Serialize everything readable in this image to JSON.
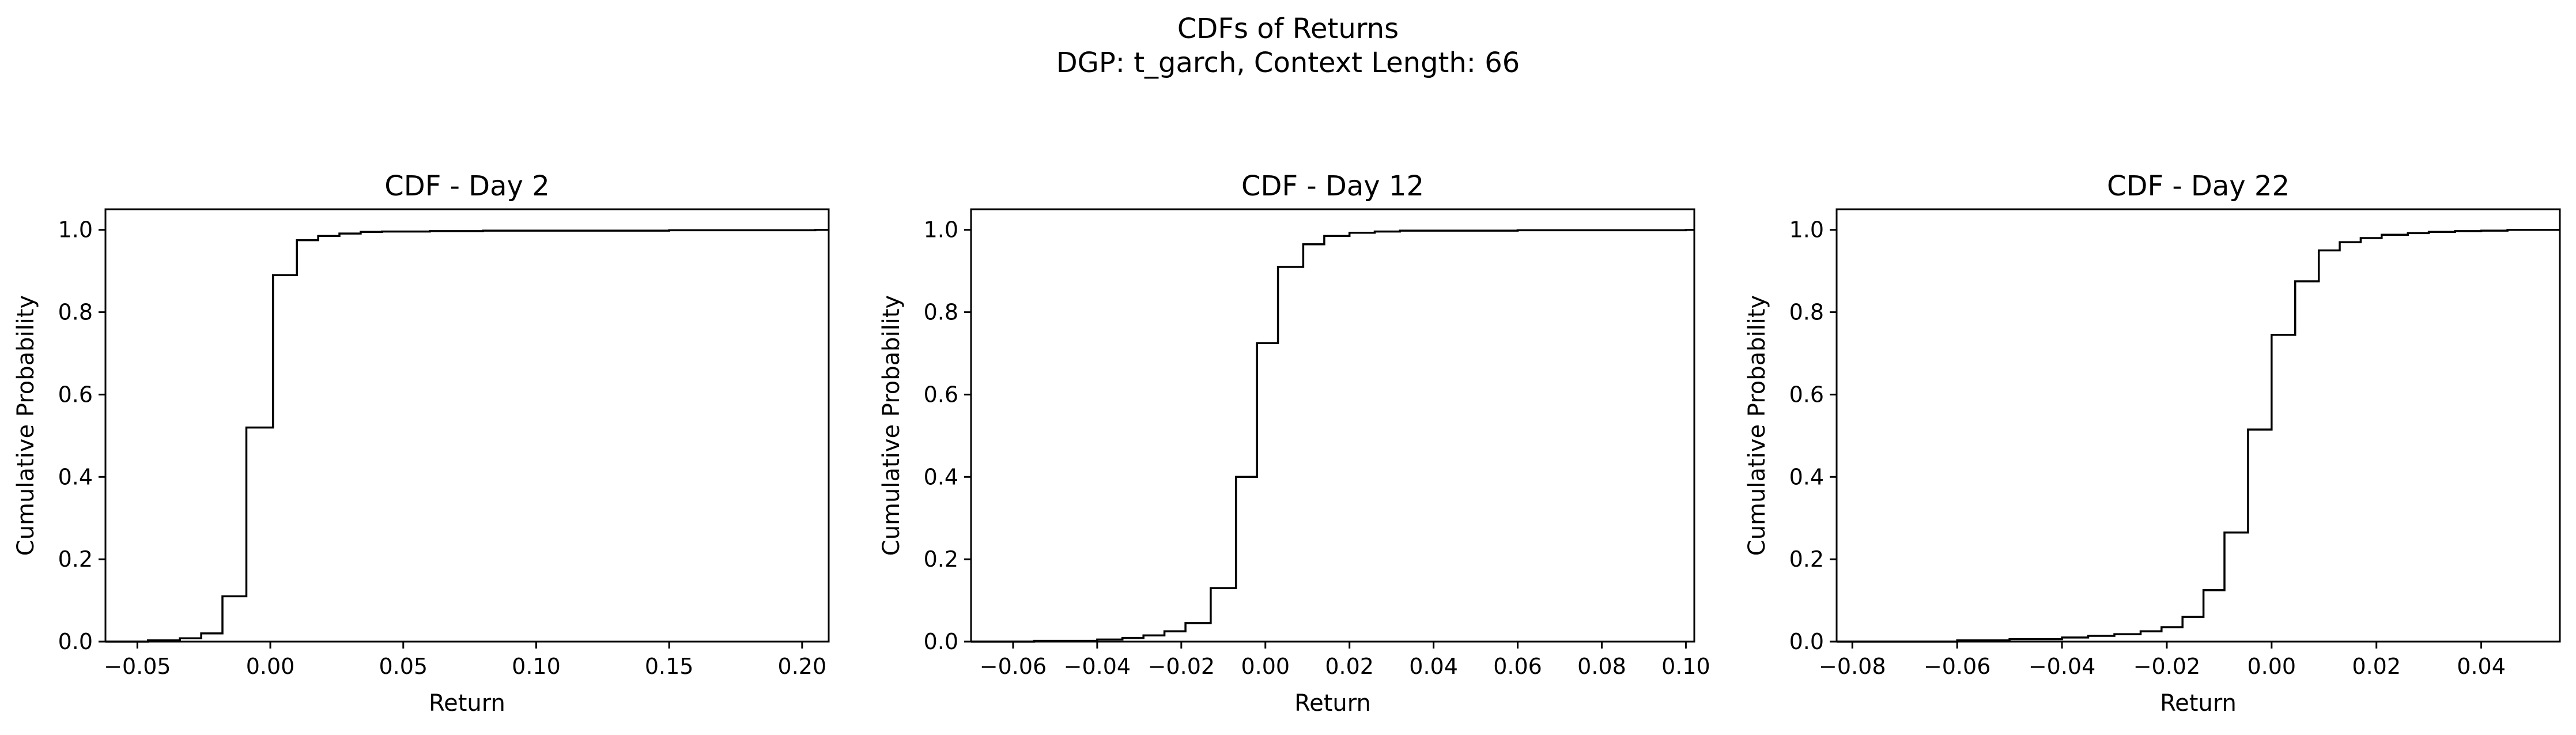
{
  "figure": {
    "suptitle_line1": "CDFs of Returns",
    "suptitle_line2": "DGP: t_garch, Context Length: 66"
  },
  "chart_data": [
    {
      "type": "line",
      "drawstyle": "steps-post",
      "title": "CDF - Day 2",
      "xlabel": "Return",
      "ylabel": "Cumulative Probability",
      "xlim": [
        -0.062,
        0.21
      ],
      "ylim": [
        0,
        1.05
      ],
      "xticks": [
        -0.05,
        0.0,
        0.05,
        0.1,
        0.15,
        0.2
      ],
      "xtick_labels": [
        "−0.05",
        "0.00",
        "0.05",
        "0.10",
        "0.15",
        "0.20"
      ],
      "yticks": [
        0.0,
        0.2,
        0.4,
        0.6,
        0.8,
        1.0
      ],
      "ytick_labels": [
        "0.0",
        "0.2",
        "0.4",
        "0.6",
        "0.8",
        "1.0"
      ],
      "line_color": "#000000",
      "x": [
        -0.062,
        -0.046,
        -0.034,
        -0.026,
        -0.018,
        -0.009,
        0.001,
        0.01,
        0.018,
        0.026,
        0.034,
        0.042,
        0.06,
        0.08,
        0.11,
        0.15,
        0.205,
        0.21
      ],
      "y": [
        0.0,
        0.003,
        0.008,
        0.02,
        0.11,
        0.52,
        0.89,
        0.975,
        0.985,
        0.991,
        0.995,
        0.996,
        0.997,
        0.998,
        0.998,
        0.999,
        1.0,
        1.0
      ]
    },
    {
      "type": "line",
      "drawstyle": "steps-post",
      "title": "CDF - Day 12",
      "xlabel": "Return",
      "ylabel": "Cumulative Probability",
      "xlim": [
        -0.07,
        0.102
      ],
      "ylim": [
        0,
        1.05
      ],
      "xticks": [
        -0.06,
        -0.04,
        -0.02,
        0.0,
        0.02,
        0.04,
        0.06,
        0.08,
        0.1
      ],
      "xtick_labels": [
        "−0.06",
        "−0.04",
        "−0.02",
        "0.00",
        "0.02",
        "0.04",
        "0.06",
        "0.08",
        "0.10"
      ],
      "yticks": [
        0.0,
        0.2,
        0.4,
        0.6,
        0.8,
        1.0
      ],
      "ytick_labels": [
        "0.0",
        "0.2",
        "0.4",
        "0.6",
        "0.8",
        "1.0"
      ],
      "line_color": "#000000",
      "x": [
        -0.07,
        -0.055,
        -0.04,
        -0.034,
        -0.029,
        -0.024,
        -0.019,
        -0.013,
        -0.007,
        -0.002,
        0.003,
        0.009,
        0.014,
        0.02,
        0.026,
        0.032,
        0.06,
        0.1,
        0.102
      ],
      "y": [
        0.0,
        0.002,
        0.005,
        0.009,
        0.015,
        0.025,
        0.045,
        0.13,
        0.4,
        0.725,
        0.91,
        0.965,
        0.985,
        0.993,
        0.996,
        0.998,
        0.999,
        1.0,
        1.0
      ]
    },
    {
      "type": "line",
      "drawstyle": "steps-post",
      "title": "CDF - Day 22",
      "xlabel": "Return",
      "ylabel": "Cumulative Probability",
      "xlim": [
        -0.083,
        0.055
      ],
      "ylim": [
        0,
        1.05
      ],
      "xticks": [
        -0.08,
        -0.06,
        -0.04,
        -0.02,
        0.0,
        0.02,
        0.04
      ],
      "xtick_labels": [
        "−0.08",
        "−0.06",
        "−0.04",
        "−0.02",
        "0.00",
        "0.02",
        "0.04"
      ],
      "yticks": [
        0.0,
        0.2,
        0.4,
        0.6,
        0.8,
        1.0
      ],
      "ytick_labels": [
        "0.0",
        "0.2",
        "0.4",
        "0.6",
        "0.8",
        "1.0"
      ],
      "line_color": "#000000",
      "x": [
        -0.083,
        -0.06,
        -0.05,
        -0.04,
        -0.035,
        -0.03,
        -0.025,
        -0.021,
        -0.017,
        -0.013,
        -0.009,
        -0.0045,
        0.0,
        0.0045,
        0.009,
        0.013,
        0.017,
        0.021,
        0.026,
        0.03,
        0.035,
        0.04,
        0.045,
        0.055
      ],
      "y": [
        0.0,
        0.003,
        0.006,
        0.01,
        0.014,
        0.018,
        0.025,
        0.035,
        0.06,
        0.125,
        0.265,
        0.515,
        0.745,
        0.875,
        0.95,
        0.97,
        0.98,
        0.988,
        0.992,
        0.995,
        0.997,
        0.998,
        1.0,
        1.0
      ]
    }
  ]
}
